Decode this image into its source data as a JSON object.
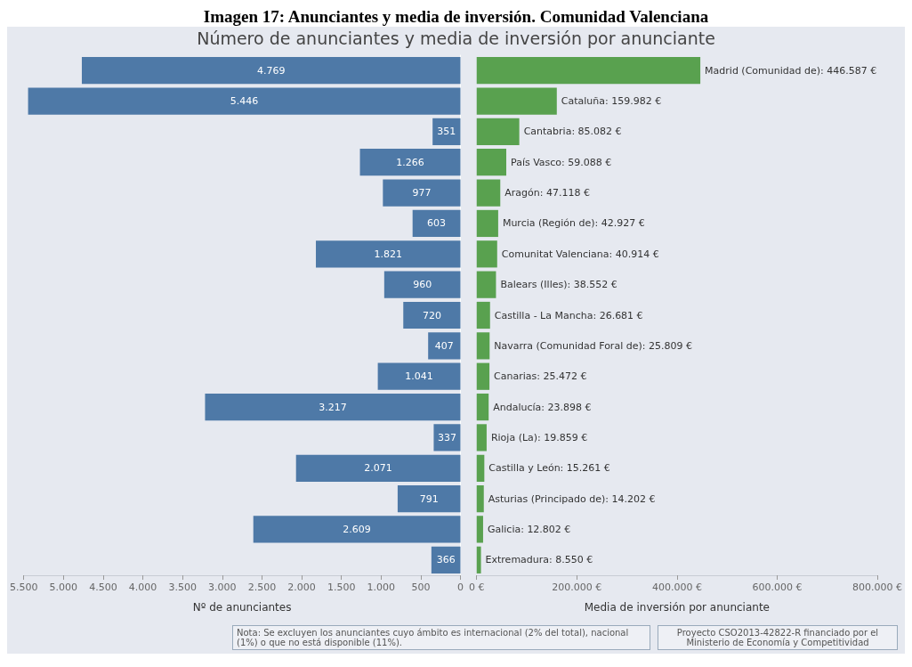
{
  "chart_data": [
    {
      "type": "bar",
      "orientation": "horizontal",
      "title": "Imagen 17: Anunciantes y media de inversión. Comunidad Valenciana",
      "subtitle": "Número de anunciantes y media de inversión por anunciante",
      "annotations": [
        "Nota: Se excluyen los anunciantes cuyo ámbito es internacional (2% del total), nacional (1%) o que no está disponible (11%).",
        "Proyecto CSO2013-42822-R financiado por el Ministerio de Economía y Competitividad"
      ],
      "categories": [
        null,
        null,
        null,
        null,
        null,
        null,
        null,
        null,
        null,
        null,
        null,
        null,
        null,
        null,
        null,
        null,
        null
      ],
      "values": [
        4769,
        5446,
        351,
        1266,
        977,
        603,
        1821,
        960,
        720,
        407,
        1041,
        3217,
        337,
        2071,
        791,
        2609,
        366
      ],
      "value_labels": [
        "4.769",
        "5.446",
        "351",
        "1.266",
        "977",
        "603",
        "1.821",
        "960",
        "720",
        "407",
        "1.041",
        "3.217",
        "337",
        "2.071",
        "791",
        "2.609",
        "366"
      ],
      "color": "#4e79a7",
      "xlim": [
        5500,
        0
      ],
      "xticks": [
        {
          "value": 5500,
          "label": "5.500"
        },
        {
          "value": 5000,
          "label": "5.000"
        },
        {
          "value": 4500,
          "label": "4.500"
        },
        {
          "value": 4000,
          "label": "4.000"
        },
        {
          "value": 3500,
          "label": "3.500"
        },
        {
          "value": 3000,
          "label": "3.000"
        },
        {
          "value": 2500,
          "label": "2.500"
        },
        {
          "value": 2000,
          "label": "2.000"
        },
        {
          "value": 1500,
          "label": "1.500"
        },
        {
          "value": 1000,
          "label": "1.000"
        },
        500,
        0
      ],
      "xlabel": "Nº de anunciantes"
    },
    {
      "type": "bar",
      "orientation": "horizontal",
      "categories": [
        null,
        null,
        null,
        null,
        null,
        null,
        null,
        null,
        null,
        null,
        null,
        null,
        null,
        null,
        null,
        null,
        null
      ],
      "values": [
        446587,
        159982,
        85082,
        59088,
        47118,
        42927,
        40914,
        38552,
        26681,
        25809,
        25472,
        23898,
        19859,
        15261,
        14202,
        12802,
        8550
      ],
      "value_labels": [
        "Madrid (Comunidad de): 446.587 €",
        "Cataluña: 159.982 €",
        "Cantabria: 85.082 €",
        "País Vasco: 59.088 €",
        "Aragón: 47.118 €",
        "Murcia (Región de): 42.927 €",
        "Comunitat Valenciana: 40.914 €",
        "Balears (Illes): 38.552 €",
        "Castilla - La Mancha: 26.681 €",
        "Navarra (Comunidad Foral de): 25.809 €",
        "Canarias: 25.472 €",
        "Andalucía: 23.898 €",
        "Rioja (La): 19.859 €",
        "Castilla y León: 15.261 €",
        "Asturias (Principado de): 14.202 €",
        "Galicia: 12.802 €",
        "Extremadura: 8.550 €"
      ],
      "color": "#59a14f",
      "xlim": [
        0,
        800000
      ],
      "xticks": [
        {
          "value": 0,
          "label": "0 €"
        },
        {
          "value": 200000,
          "label": "200.000 €"
        },
        {
          "value": 400000,
          "label": "400.000 €"
        },
        {
          "value": 600000,
          "label": "600.000 €"
        },
        {
          "value": 800000,
          "label": "800.000 €"
        }
      ],
      "xlabel": "Media de inversión por anunciante"
    }
  ]
}
